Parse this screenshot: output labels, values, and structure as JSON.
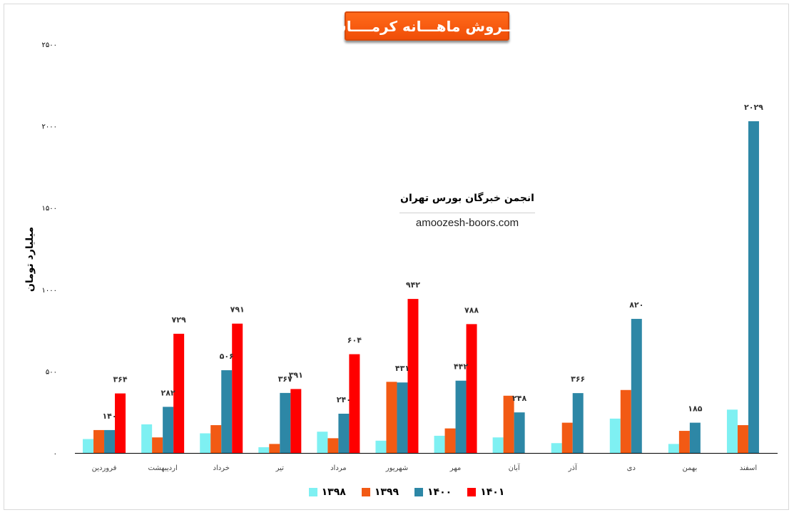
{
  "chart_data": {
    "type": "bar",
    "title": "فـــروش ماهـــانه کرمــــاشا",
    "ylabel": "میلیارد تومان",
    "xlabel": "",
    "ylim": [
      0,
      2500
    ],
    "yticks": [
      0,
      500,
      1000,
      1500,
      2000,
      2500
    ],
    "ytick_labels": [
      "۰",
      "۵۰۰",
      "۱۰۰۰",
      "۱۵۰۰",
      "۲۰۰۰",
      "۲۵۰۰"
    ],
    "categories": [
      "فروردین",
      "اردیبهشت",
      "خرداد",
      "تیر",
      "مرداد",
      "شهریور",
      "مهر",
      "آبان",
      "آذر",
      "دی",
      "بهمن",
      "اسفند"
    ],
    "series": [
      {
        "name": "۱۳۹۸",
        "color": "#7ef0f2",
        "values": [
          85,
          175,
          120,
          35,
          130,
          75,
          105,
          95,
          60,
          210,
          55,
          265
        ]
      },
      {
        "name": "۱۳۹۹",
        "color": "#f25a14",
        "values": [
          140,
          95,
          170,
          55,
          90,
          435,
          150,
          350,
          185,
          385,
          135,
          170
        ]
      },
      {
        "name": "۱۴۰۰",
        "color": "#2d87a6",
        "values": [
          140,
          282,
          506,
          367,
          240,
          431,
          442,
          248,
          366,
          820,
          185,
          2029
        ]
      },
      {
        "name": "۱۴۰۱",
        "color": "#ff0000",
        "values": [
          364,
          729,
          791,
          391,
          604,
          942,
          788,
          null,
          null,
          null,
          null,
          null
        ]
      }
    ],
    "data_labels": [
      {
        "series": 2,
        "index": 0,
        "text": "۱۴۰"
      },
      {
        "series": 2,
        "index": 1,
        "text": "۲۸۲"
      },
      {
        "series": 2,
        "index": 2,
        "text": "۵۰۶"
      },
      {
        "series": 2,
        "index": 3,
        "text": "۳۶۷"
      },
      {
        "series": 2,
        "index": 4,
        "text": "۲۴۰"
      },
      {
        "series": 2,
        "index": 5,
        "text": "۴۳۱"
      },
      {
        "series": 2,
        "index": 6,
        "text": "۴۴۲"
      },
      {
        "series": 2,
        "index": 7,
        "text": "۲۴۸"
      },
      {
        "series": 2,
        "index": 8,
        "text": "۳۶۶"
      },
      {
        "series": 2,
        "index": 9,
        "text": "۸۲۰"
      },
      {
        "series": 2,
        "index": 10,
        "text": "۱۸۵"
      },
      {
        "series": 2,
        "index": 11,
        "text": "۲۰۲۹"
      },
      {
        "series": 3,
        "index": 0,
        "text": "۳۶۴"
      },
      {
        "series": 3,
        "index": 1,
        "text": "۷۲۹"
      },
      {
        "series": 3,
        "index": 2,
        "text": "۷۹۱"
      },
      {
        "series": 3,
        "index": 3,
        "text": "۳۹۱"
      },
      {
        "series": 3,
        "index": 4,
        "text": "۶۰۴"
      },
      {
        "series": 3,
        "index": 5,
        "text": "۹۴۲"
      },
      {
        "series": 3,
        "index": 6,
        "text": "۷۸۸"
      }
    ],
    "grid": false,
    "legend_position": "bottom"
  },
  "watermark": {
    "name": "انجمن خبرگان بورس تهران",
    "url": "amoozesh-boors.com"
  }
}
